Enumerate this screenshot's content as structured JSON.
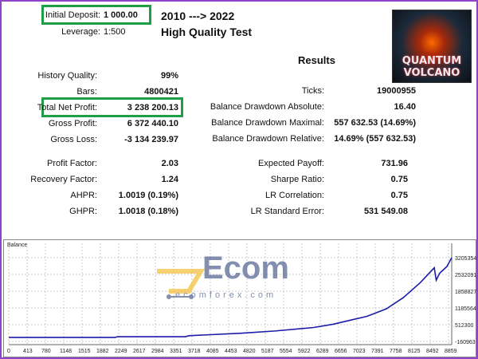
{
  "header": {
    "deposit_label": "Initial Deposit:",
    "deposit_value": "1 000.00",
    "leverage_label": "Leverage:",
    "leverage_value": "1:500",
    "period": "2010 ---> 2022",
    "quality": "High Quality Test",
    "results": "Results"
  },
  "logo": {
    "line1": "QUANTUM",
    "line2": "VOLCANO"
  },
  "watermark": {
    "brand": "ecomforex.com",
    "mark": "Ecom"
  },
  "left": [
    {
      "label": "History Quality:",
      "value": "99%"
    },
    {
      "label": "Bars:",
      "value": "4800421"
    },
    {
      "label": "Total Net Profit:",
      "value": "3 238 200.13"
    },
    {
      "label": "Gross Profit:",
      "value": "6 372 440.10"
    },
    {
      "label": "Gross Loss:",
      "value": "-3 134 239.97"
    }
  ],
  "right": [
    {
      "label": "Ticks:",
      "value": "19000955"
    },
    {
      "label": "Balance Drawdown Absolute:",
      "value": "16.40"
    },
    {
      "label": "Balance Drawdown Maximal:",
      "value": "557 632.53 (14.69%)"
    },
    {
      "label": "Balance Drawdown Relative:",
      "value": "14.69% (557 632.53)"
    }
  ],
  "left2": [
    {
      "label": "Profit Factor:",
      "value": "2.03"
    },
    {
      "label": "Recovery Factor:",
      "value": "1.24"
    },
    {
      "label": "AHPR:",
      "value": "1.0019 (0.19%)"
    },
    {
      "label": "GHPR:",
      "value": "1.0018 (0.18%)"
    }
  ],
  "right2": [
    {
      "label": "Expected Payoff:",
      "value": "731.96"
    },
    {
      "label": "Sharpe Ratio:",
      "value": "0.75"
    },
    {
      "label": "LR Correlation:",
      "value": "0.75"
    },
    {
      "label": "LR Standard Error:",
      "value": "531 549.08"
    }
  ],
  "chart_data": {
    "type": "line",
    "title": "Balance",
    "line_color": "#1c1ca8",
    "grid": true,
    "ylim": [
      -160963,
      3205354
    ],
    "y_ticks": [
      "3205354",
      "2532091",
      "1858827",
      "1185564",
      "512300",
      "-160963"
    ],
    "x_ticks": [
      "0",
      "413",
      "780",
      "1148",
      "1515",
      "1882",
      "2249",
      "2617",
      "2984",
      "3351",
      "3718",
      "4085",
      "4453",
      "4820",
      "5187",
      "5554",
      "5922",
      "6289",
      "6656",
      "7023",
      "7391",
      "7758",
      "8125",
      "8492",
      "8859"
    ],
    "xlim": [
      0,
      9150
    ],
    "series": [
      {
        "x": [
          0,
          2200,
          2250,
          3650,
          3720,
          4800,
          5500,
          6300,
          6700,
          7050,
          7400,
          7800,
          8150,
          8500,
          8790,
          8830,
          8900,
          9050,
          9150
        ],
        "y": [
          1000,
          1000,
          30000,
          30000,
          70000,
          170000,
          260000,
          400000,
          530000,
          690000,
          850000,
          1150000,
          1600000,
          2200000,
          2800000,
          2300000,
          2580000,
          2850000,
          3205354
        ]
      }
    ]
  }
}
